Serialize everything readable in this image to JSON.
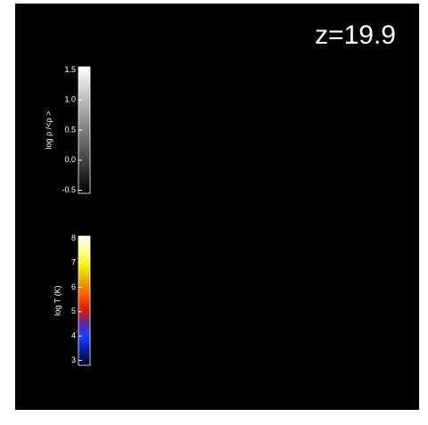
{
  "redshift": "z=19.9",
  "colorbars": [
    {
      "label": "log ρ /<ρ >",
      "lim": [
        -0.55,
        1.55
      ],
      "ticks": [
        {
          "value": 1.5,
          "label": "1.5"
        },
        {
          "value": 1.0,
          "label": "1.0"
        },
        {
          "value": 0.5,
          "label": "0.5"
        },
        {
          "value": 0.0,
          "label": "0.0"
        },
        {
          "value": -0.5,
          "label": "-0.5"
        }
      ]
    },
    {
      "label": "log T (K)",
      "lim": [
        2.8,
        8.1
      ],
      "ticks": [
        8,
        7,
        6,
        5,
        4,
        3
      ]
    }
  ]
}
